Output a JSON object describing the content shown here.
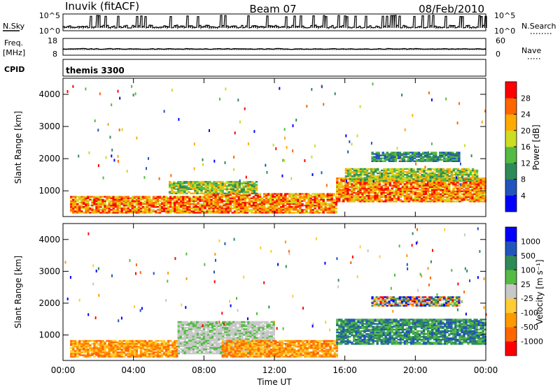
{
  "header": {
    "station": "Inuvik (fitACF)",
    "beam": "Beam 07",
    "date": "08/Feb/2010"
  },
  "top_panels": {
    "nsky_label": "N.Sky",
    "nsky_ticks": [
      "10^5",
      "10^0"
    ],
    "nsearch_label": "N.Search",
    "nsearch_ticks": [
      "10^5",
      "10^0"
    ],
    "freq_label": "Freq.",
    "freq_unit": "[MHz]",
    "freq_ticks": [
      "18",
      "8"
    ],
    "nave_label": "Nave",
    "nave_ticks": [
      "60",
      "0"
    ],
    "cpid_label": "CPID",
    "cpid_value": "themis 3300"
  },
  "chart_data": [
    {
      "type": "heatmap",
      "name": "power",
      "ylabel": "Slant Range [km]",
      "xlabel": "Time UT",
      "xlim": [
        0,
        24
      ],
      "ylim": [
        200,
        4500
      ],
      "x_ticks": [
        "00:00",
        "04:00",
        "08:00",
        "12:00",
        "16:00",
        "20:00",
        "00:00"
      ],
      "y_ticks": [
        1000,
        2000,
        3000,
        4000
      ],
      "colorbar": {
        "label": "Power [dB]",
        "ticks": [
          "28",
          "24",
          "20",
          "16",
          "12",
          "8",
          "4"
        ],
        "colors": [
          "#0000ff",
          "#2255bb",
          "#2e8b57",
          "#55bb44",
          "#ccdd22",
          "#ffaa00",
          "#ff6600",
          "#ff0000"
        ]
      },
      "echo_regions": [
        {
          "t": [
            0.4,
            8.0
          ],
          "r": [
            300,
            800
          ],
          "level": "high"
        },
        {
          "t": [
            8.0,
            15.5
          ],
          "r": [
            300,
            900
          ],
          "level": "high"
        },
        {
          "t": [
            6.0,
            11.0
          ],
          "r": [
            900,
            1300
          ],
          "level": "mid"
        },
        {
          "t": [
            15.5,
            24.0
          ],
          "r": [
            650,
            1400
          ],
          "level": "high"
        },
        {
          "t": [
            16.0,
            23.5
          ],
          "r": [
            1300,
            1700
          ],
          "level": "mid"
        },
        {
          "t": [
            17.5,
            22.5
          ],
          "r": [
            1900,
            2200
          ],
          "level": "low"
        }
      ]
    },
    {
      "type": "heatmap",
      "name": "velocity",
      "ylabel": "Slant Range [km]",
      "xlabel": "Time UT",
      "xlim": [
        0,
        24
      ],
      "ylim": [
        200,
        4500
      ],
      "x_ticks": [
        "00:00",
        "04:00",
        "08:00",
        "12:00",
        "16:00",
        "20:00",
        "00:00"
      ],
      "y_ticks": [
        1000,
        2000,
        3000,
        4000
      ],
      "colorbar": {
        "label": "Velocity [m s⁻¹]",
        "ticks": [
          "1000",
          "500",
          "100",
          "25",
          "-25",
          "-100",
          "-500",
          "-1000"
        ],
        "colors": [
          "#ff0000",
          "#ff6600",
          "#ff9900",
          "#ffcc33",
          "#c8c8c8",
          "#55bb44",
          "#2e8b57",
          "#2255bb",
          "#0000ff"
        ]
      },
      "echo_regions": [
        {
          "t": [
            0.4,
            6.5
          ],
          "r": [
            300,
            800
          ],
          "level": "away"
        },
        {
          "t": [
            6.5,
            12.0
          ],
          "r": [
            400,
            1400
          ],
          "level": "zero"
        },
        {
          "t": [
            9.0,
            15.5
          ],
          "r": [
            300,
            800
          ],
          "level": "away"
        },
        {
          "t": [
            15.5,
            24.0
          ],
          "r": [
            700,
            1500
          ],
          "level": "toward"
        },
        {
          "t": [
            17.5,
            22.5
          ],
          "r": [
            1900,
            2200
          ],
          "level": "mixed"
        }
      ]
    }
  ]
}
